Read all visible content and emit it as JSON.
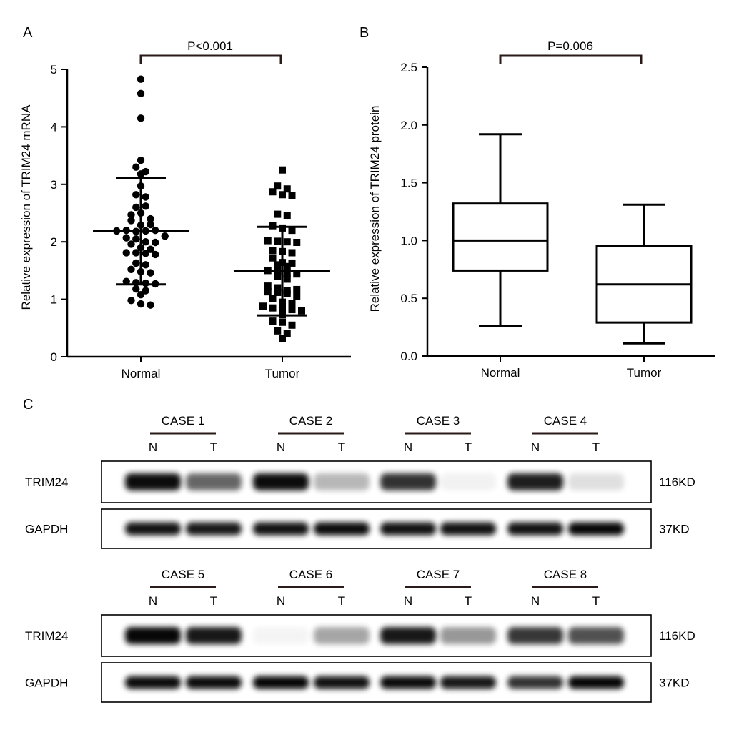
{
  "panels": {
    "a": "A",
    "b": "B",
    "c": "C"
  },
  "colors": {
    "ink": "#000000",
    "bracket": "#2b1a1a",
    "blot_bg": "#ffffff"
  },
  "chart_data": [
    {
      "type": "scatter",
      "panel": "A",
      "ylabel": "Relative expression of TRIM24 mRNA",
      "xlabel": "",
      "categories": [
        "Normal",
        "Tumor"
      ],
      "ylim": [
        0,
        5
      ],
      "yticks": [
        "0",
        "1",
        "2",
        "3",
        "4",
        "5"
      ],
      "annotation": "P<0.001",
      "series": [
        {
          "marker": "circle",
          "values": [
            4.83,
            4.58,
            4.15,
            3.42,
            3.3,
            3.22,
            3.18,
            2.97,
            2.82,
            2.78,
            2.6,
            2.62,
            2.47,
            2.5,
            2.4,
            2.37,
            2.29,
            2.3,
            2.19,
            2.2,
            2.18,
            2.19,
            2.2,
            2.1,
            2.07,
            2.05,
            2.0,
            1.99,
            1.96,
            1.9,
            1.87,
            1.81,
            1.81,
            1.8,
            1.78,
            1.63,
            1.6,
            1.52,
            1.48,
            1.46,
            1.31,
            1.29,
            1.28,
            1.27,
            1.18,
            1.15,
            1.08,
            0.98,
            0.92,
            0.9
          ]
        },
        {
          "marker": "square",
          "values": [
            3.25,
            2.97,
            2.92,
            2.87,
            2.82,
            2.8,
            2.48,
            2.45,
            2.28,
            2.24,
            2.2,
            2.02,
            2.01,
            2.0,
            1.99,
            1.85,
            1.83,
            1.81,
            1.72,
            1.64,
            1.63,
            1.6,
            1.57,
            1.5,
            1.48,
            1.45,
            1.44,
            1.4,
            1.35,
            1.23,
            1.2,
            1.15,
            1.17,
            1.13,
            1.12,
            1.1,
            1.05,
            1.02,
            0.95,
            0.93,
            0.88,
            0.85,
            0.84,
            0.82,
            0.8,
            0.73,
            0.62,
            0.6,
            0.55,
            0.45,
            0.4,
            0.32
          ]
        }
      ],
      "mean": [
        2.19,
        1.49
      ],
      "sd_upper": [
        3.11,
        2.26
      ],
      "sd_lower": [
        1.26,
        0.72
      ]
    },
    {
      "type": "box",
      "panel": "B",
      "ylabel": "Relative expression of TRIM24 protein",
      "xlabel": "",
      "categories": [
        "Normal",
        "Tumor"
      ],
      "ylim": [
        0,
        2.5
      ],
      "yticks": [
        "0.0",
        "0.5",
        "1.0",
        "1.5",
        "2.0",
        "2.5"
      ],
      "annotation": "P=0.006",
      "boxes": [
        {
          "min": 0.26,
          "q1": 0.74,
          "median": 1.0,
          "q3": 1.32,
          "max": 1.92
        },
        {
          "min": 0.11,
          "q1": 0.29,
          "median": 0.62,
          "q3": 0.95,
          "max": 1.31
        }
      ]
    }
  ],
  "blot": {
    "groups": [
      {
        "cases": [
          "CASE 1",
          "CASE 2",
          "CASE 3",
          "CASE 4"
        ],
        "lane_labels": [
          "N",
          "T",
          "N",
          "T",
          "N",
          "T",
          "N",
          "T"
        ],
        "rows": [
          {
            "label": "TRIM24",
            "size": "116KD",
            "intensities": [
              0.95,
              0.6,
              0.95,
              0.28,
              0.8,
              0.05,
              0.88,
              0.12
            ]
          },
          {
            "label": "GAPDH",
            "size": "37KD",
            "intensities": [
              0.92,
              0.9,
              0.92,
              0.95,
              0.92,
              0.92,
              0.92,
              0.97
            ]
          }
        ]
      },
      {
        "cases": [
          "CASE 5",
          "CASE 6",
          "CASE 7",
          "CASE 8"
        ],
        "lane_labels": [
          "N",
          "T",
          "N",
          "T",
          "N",
          "T",
          "N",
          "T"
        ],
        "rows": [
          {
            "label": "TRIM24",
            "size": "116KD",
            "intensities": [
              0.97,
              0.9,
              0.03,
              0.35,
              0.9,
              0.4,
              0.78,
              0.68
            ]
          },
          {
            "label": "GAPDH",
            "size": "37KD",
            "intensities": [
              0.95,
              0.95,
              0.97,
              0.92,
              0.95,
              0.9,
              0.8,
              0.97
            ]
          }
        ]
      }
    ]
  }
}
